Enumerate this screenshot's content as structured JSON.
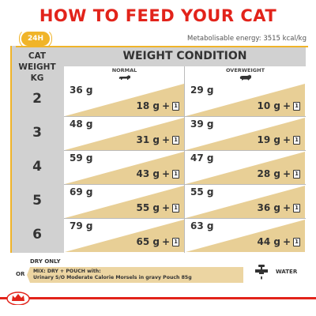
{
  "title": "HOW TO FEED YOUR CAT",
  "badge_24h": "24H",
  "energy": "Metabolisable energy: 3515 kcal/kg",
  "cat_weight_header": [
    "CAT",
    "WEIGHT",
    "KG"
  ],
  "weight_condition_header": "WEIGHT CONDITION",
  "normal_label": "NORMAL",
  "overweight_label": "OVERWEIGHT",
  "rows": [
    {
      "weight": "2",
      "normal_dry": "36 g",
      "normal_mix": "18 g",
      "over_dry": "29 g",
      "over_mix": "10 g"
    },
    {
      "weight": "3",
      "normal_dry": "48 g",
      "normal_mix": "31 g",
      "over_dry": "39 g",
      "over_mix": "19 g"
    },
    {
      "weight": "4",
      "normal_dry": "59 g",
      "normal_mix": "43 g",
      "over_dry": "47 g",
      "over_mix": "28 g"
    },
    {
      "weight": "5",
      "normal_dry": "69 g",
      "normal_mix": "55 g",
      "over_dry": "55 g",
      "over_mix": "36 g"
    },
    {
      "weight": "6",
      "normal_dry": "79 g",
      "normal_mix": "65 g",
      "over_dry": "63 g",
      "over_mix": "44 g"
    }
  ],
  "plus": "+",
  "pouch_count": "1",
  "legend": {
    "dry_only": "DRY ONLY",
    "or": "OR",
    "mix_line1": "MIX: DRY + POUCH with:",
    "mix_line2": "Urinary S/O Moderate Calorie Morsels in gravy Pouch 85g",
    "water": "WATER"
  },
  "colors": {
    "title_red": "#e2231a",
    "accent_yellow": "#f0b429",
    "cell_tan": "#e8cf96",
    "grey": "#d1d1d1"
  },
  "icons": {
    "badge": "24h-clock-icon",
    "normal_cat": "normal-cat-icon",
    "overweight_cat": "overweight-cat-icon",
    "pouch": "pouch-icon",
    "water": "faucet-icon",
    "brand": "royal-canin-crown-logo"
  }
}
